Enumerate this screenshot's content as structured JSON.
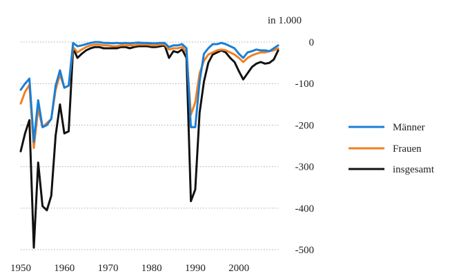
{
  "chart_data": {
    "type": "line",
    "unit_label": "in 1.000",
    "xlim": [
      1950,
      2009
    ],
    "ylim": [
      -500,
      0
    ],
    "x_ticks": [
      1950,
      1960,
      1970,
      1980,
      1990,
      2000
    ],
    "y_ticks": [
      0,
      -100,
      -200,
      -300,
      -400,
      -500
    ],
    "y_tick_labels": [
      "0",
      "-100",
      "-200",
      "-300",
      "-400",
      "-500"
    ],
    "grid": "horizontal dotted",
    "legend_position": "right",
    "x": [
      1950,
      1951,
      1952,
      1953,
      1954,
      1955,
      1956,
      1957,
      1958,
      1959,
      1960,
      1961,
      1962,
      1963,
      1964,
      1965,
      1966,
      1967,
      1968,
      1969,
      1970,
      1971,
      1972,
      1973,
      1974,
      1975,
      1976,
      1977,
      1978,
      1979,
      1980,
      1981,
      1982,
      1983,
      1984,
      1985,
      1986,
      1987,
      1988,
      1989,
      1990,
      1991,
      1992,
      1993,
      1994,
      1995,
      1996,
      1997,
      1998,
      1999,
      2000,
      2001,
      2002,
      2003,
      2004,
      2005,
      2006,
      2007,
      2008,
      2009
    ],
    "series": [
      {
        "name": "Männer",
        "color": "#1a7ed6",
        "values": [
          -115,
          -100,
          -88,
          -240,
          -140,
          -205,
          -200,
          -185,
          -105,
          -68,
          -110,
          -105,
          -2,
          -10,
          -8,
          -5,
          -2,
          0,
          0,
          -2,
          -2,
          -3,
          -2,
          -3,
          -2,
          -3,
          -2,
          -1,
          -2,
          -2,
          -3,
          -3,
          -2,
          -2,
          -12,
          -8,
          -8,
          -5,
          -15,
          -205,
          -205,
          -95,
          -28,
          -15,
          -5,
          -5,
          -2,
          -5,
          -10,
          -15,
          -28,
          -38,
          -25,
          -22,
          -18,
          -20,
          -20,
          -22,
          -15,
          -8
        ]
      },
      {
        "name": "Frauen",
        "color": "#f08020",
        "values": [
          -148,
          -120,
          -103,
          -255,
          -160,
          -205,
          -195,
          -185,
          -115,
          -78,
          -110,
          -105,
          -12,
          -25,
          -18,
          -12,
          -8,
          -6,
          -6,
          -8,
          -8,
          -10,
          -10,
          -8,
          -8,
          -8,
          -8,
          -6,
          -6,
          -6,
          -8,
          -8,
          -6,
          -6,
          -18,
          -15,
          -15,
          -12,
          -25,
          -175,
          -145,
          -75,
          -45,
          -30,
          -25,
          -20,
          -18,
          -20,
          -25,
          -30,
          -38,
          -48,
          -38,
          -32,
          -28,
          -25,
          -25,
          -22,
          -20,
          -15
        ]
      },
      {
        "name": "insgesamt",
        "color": "#111111",
        "values": [
          -263,
          -220,
          -188,
          -495,
          -290,
          -395,
          -405,
          -370,
          -225,
          -150,
          -220,
          -215,
          -15,
          -38,
          -28,
          -20,
          -15,
          -12,
          -12,
          -15,
          -15,
          -15,
          -15,
          -12,
          -12,
          -15,
          -12,
          -10,
          -10,
          -10,
          -12,
          -12,
          -10,
          -8,
          -38,
          -22,
          -25,
          -18,
          -38,
          -383,
          -355,
          -170,
          -95,
          -50,
          -30,
          -25,
          -20,
          -25,
          -38,
          -48,
          -70,
          -90,
          -75,
          -60,
          -52,
          -48,
          -52,
          -50,
          -42,
          -20
        ]
      }
    ]
  }
}
